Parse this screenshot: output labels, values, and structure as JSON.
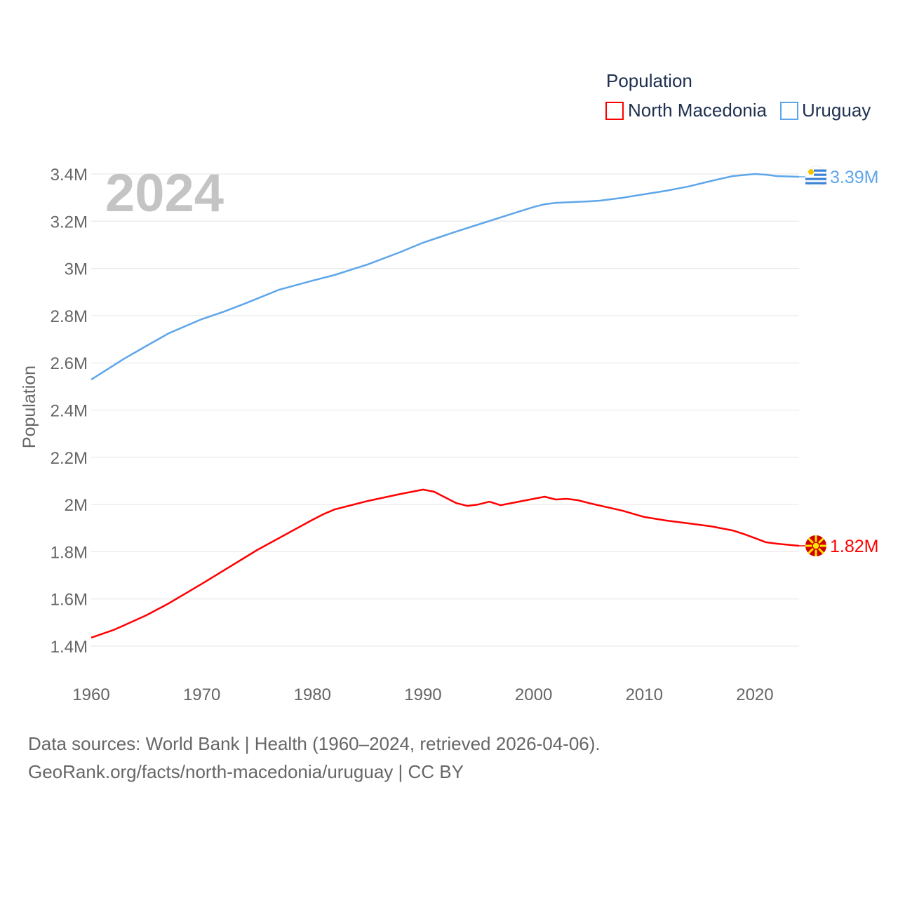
{
  "chart_data": {
    "type": "line",
    "legend_title": "Population",
    "legend_placement": "top-right",
    "ylabel": "Population",
    "xlabel": "",
    "year_watermark": "2024",
    "ylim": [
      1.4,
      3.4
    ],
    "xlim": [
      1960,
      2024
    ],
    "y_ticks": [
      1.4,
      1.6,
      1.8,
      2.0,
      2.2,
      2.4,
      2.6,
      2.8,
      3.0,
      3.2,
      3.4
    ],
    "y_tick_labels": [
      "1.4M",
      "1.6M",
      "1.8M",
      "2M",
      "2.2M",
      "2.4M",
      "2.6M",
      "2.8M",
      "3M",
      "3.2M",
      "3.4M"
    ],
    "x_ticks": [
      1960,
      1970,
      1980,
      1990,
      2000,
      2010,
      2020
    ],
    "x_tick_labels": [
      "1960",
      "1970",
      "1980",
      "1990",
      "2000",
      "2010",
      "2020"
    ],
    "grid": true,
    "units": "millions",
    "series": [
      {
        "name": "North Macedonia",
        "color": "#ff0000",
        "end_label": "1.82M",
        "flag_icon": "north-macedonia-flag-icon",
        "x": [
          1960,
          1962,
          1963,
          1965,
          1967,
          1970,
          1975,
          1980,
          1981,
          1982,
          1985,
          1988,
          1990,
          1991,
          1992,
          1993,
          1994,
          1995,
          1996,
          1997,
          1998,
          2000,
          2001,
          2002,
          2003,
          2004,
          2005,
          2008,
          2010,
          2012,
          2014,
          2016,
          2018,
          2019,
          2020,
          2021,
          2022,
          2024
        ],
        "values": [
          1.436,
          1.468,
          1.489,
          1.531,
          1.581,
          1.664,
          1.807,
          1.935,
          1.959,
          1.979,
          2.015,
          2.045,
          2.063,
          2.054,
          2.03,
          2.006,
          1.994,
          2.0,
          2.012,
          1.997,
          2.006,
          2.024,
          2.033,
          2.021,
          2.024,
          2.018,
          2.006,
          1.974,
          1.947,
          1.932,
          1.92,
          1.908,
          1.89,
          1.875,
          1.858,
          1.84,
          1.834,
          1.825
        ]
      },
      {
        "name": "Uruguay",
        "color": "#5ea6ea",
        "end_label": "3.39M",
        "flag_icon": "uruguay-flag-icon",
        "x": [
          1960,
          1963,
          1965,
          1967,
          1970,
          1972,
          1974,
          1977,
          1980,
          1982,
          1985,
          1988,
          1990,
          1993,
          1995,
          1998,
          2000,
          2001,
          2002,
          2005,
          2006,
          2008,
          2010,
          2012,
          2014,
          2016,
          2018,
          2020,
          2021,
          2022,
          2024
        ],
        "values": [
          2.529,
          2.618,
          2.672,
          2.725,
          2.785,
          2.817,
          2.853,
          2.91,
          2.948,
          2.972,
          3.017,
          3.07,
          3.109,
          3.156,
          3.186,
          3.231,
          3.26,
          3.272,
          3.278,
          3.284,
          3.287,
          3.299,
          3.314,
          3.329,
          3.347,
          3.37,
          3.391,
          3.4,
          3.397,
          3.391,
          3.388
        ]
      }
    ]
  },
  "footer": {
    "line1": "Data sources: World Bank | Health (1960–2024, retrieved 2026-04-06).",
    "line2": "GeoRank.org/facts/north-macedonia/uruguay | CC BY"
  }
}
